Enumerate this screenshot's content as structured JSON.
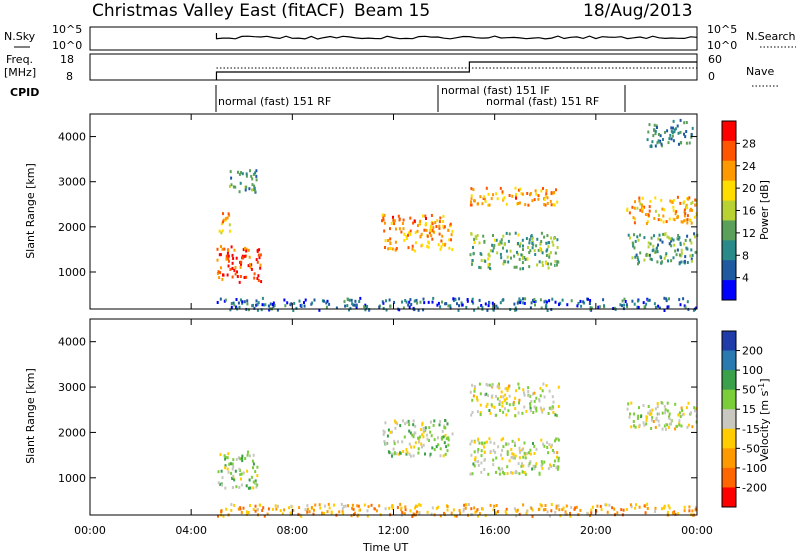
{
  "header": {
    "title": "Christmas Valley East (fitACF)",
    "beam": "Beam 15",
    "date": "18/Aug/2013"
  },
  "meta_panels": {
    "nsky_label": "N.Sky",
    "nsky_ticks": [
      "10^5",
      "10^0"
    ],
    "nsearch_label": "N.Search",
    "nsearch_ticks": [
      "10^5",
      "10^0"
    ],
    "freq_label": "Freq.",
    "freq_unit": "[MHz]",
    "freq_ticks": [
      "18",
      "8"
    ],
    "nave_label": "Nave",
    "nave_ticks": [
      "60",
      "0"
    ],
    "cpid_label": "CPID",
    "cpid_segments": [
      {
        "text": "normal (fast) 151 RF"
      },
      {
        "text": "normal (fast) 151 IF"
      },
      {
        "text": "normal (fast) 151 RF"
      }
    ]
  },
  "power_panel": {
    "ylabel": "Slant Range [km]",
    "yticks": [
      "4000",
      "3000",
      "2000",
      "1000"
    ],
    "colorbar_label": "Power [dB]",
    "colorbar_ticks": [
      "28",
      "24",
      "20",
      "16",
      "12",
      "8",
      "4"
    ],
    "colorbar_colors": [
      "#ff0000",
      "#ff5500",
      "#ff9900",
      "#ffdd00",
      "#b9d233",
      "#5aa05a",
      "#2a8a8a",
      "#1f5aa0",
      "#0000ff"
    ]
  },
  "velocity_panel": {
    "ylabel": "Slant Range [km]",
    "yticks": [
      "4000",
      "3000",
      "2000",
      "1000"
    ],
    "colorbar_label": "Velocity [m s",
    "colorbar_unit_sup": "-1",
    "colorbar_ticks": [
      "200",
      "100",
      "50",
      "15",
      "-15",
      "-50",
      "-100",
      "-200"
    ],
    "colorbar_colors": [
      "#1f3ca8",
      "#2a7ab0",
      "#3aa04a",
      "#7ccd3a",
      "#c8c8c0",
      "#ffcc00",
      "#ff9900",
      "#ff6600",
      "#ff0000"
    ]
  },
  "xaxis": {
    "label": "Time UT",
    "ticks": [
      "00:00",
      "04:00",
      "08:00",
      "12:00",
      "16:00",
      "20:00",
      "00:00"
    ]
  },
  "chart_data": [
    {
      "type": "heatmap",
      "title": "Power",
      "xlabel": "Time UT",
      "ylabel": "Slant Range [km]",
      "x_range_hours": [
        0,
        24
      ],
      "ylim": [
        180,
        4500
      ],
      "color_range": [
        0,
        30
      ],
      "colorbar_label": "Power [dB]",
      "blobs": [
        {
          "t0": 5.0,
          "t1": 6.8,
          "r0": 800,
          "r1": 1600,
          "value": 26
        },
        {
          "t0": 5.0,
          "t1": 5.5,
          "r0": 1900,
          "r1": 2400,
          "value": 20
        },
        {
          "t0": 5.4,
          "t1": 6.6,
          "r0": 2800,
          "r1": 3300,
          "value": 10
        },
        {
          "t0": 11.5,
          "t1": 14.3,
          "r0": 1500,
          "r1": 2300,
          "value": 22
        },
        {
          "t0": 15.0,
          "t1": 18.5,
          "r0": 2500,
          "r1": 2900,
          "value": 22
        },
        {
          "t0": 15.0,
          "t1": 18.5,
          "r0": 1100,
          "r1": 1900,
          "value": 12
        },
        {
          "t0": 21.2,
          "t1": 24.0,
          "r0": 2100,
          "r1": 2700,
          "value": 20
        },
        {
          "t0": 21.2,
          "t1": 24.0,
          "r0": 1200,
          "r1": 1900,
          "value": 11
        },
        {
          "t0": 22.0,
          "t1": 23.8,
          "r0": 3800,
          "r1": 4400,
          "value": 8
        },
        {
          "t0": 5.0,
          "t1": 24.0,
          "r0": 180,
          "r1": 450,
          "value": 6
        }
      ]
    },
    {
      "type": "heatmap",
      "title": "Velocity",
      "xlabel": "Time UT",
      "ylabel": "Slant Range [km]",
      "x_range_hours": [
        0,
        24
      ],
      "ylim": [
        180,
        4500
      ],
      "color_range": [
        -200,
        200
      ],
      "colorbar_label": "Velocity [m s-1]",
      "blobs": [
        {
          "t0": 5.0,
          "t1": 6.6,
          "r0": 800,
          "r1": 1600,
          "value": 30
        },
        {
          "t0": 11.5,
          "t1": 14.3,
          "r0": 1500,
          "r1": 2300,
          "value": 20
        },
        {
          "t0": 15.0,
          "t1": 18.5,
          "r0": 2400,
          "r1": 3100,
          "value": 0
        },
        {
          "t0": 15.0,
          "t1": 18.5,
          "r0": 1100,
          "r1": 1900,
          "value": 0
        },
        {
          "t0": 21.2,
          "t1": 24.0,
          "r0": 2100,
          "r1": 2700,
          "value": 0
        },
        {
          "t0": 5.0,
          "t1": 24.0,
          "r0": 180,
          "r1": 450,
          "value": -70
        }
      ]
    }
  ]
}
